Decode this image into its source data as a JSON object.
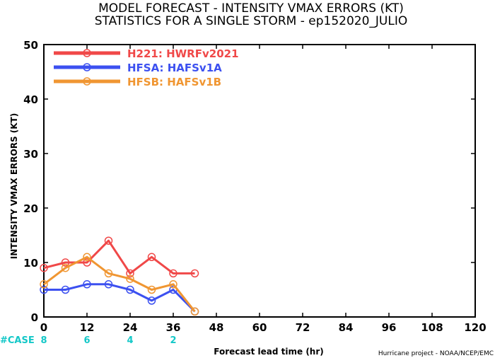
{
  "chart_data": {
    "type": "line",
    "title": "MODEL FORECAST - INTENSITY VMAX ERRORS (KT)",
    "subtitle": "STATISTICS FOR A SINGLE STORM - ep152020_JULIO",
    "xlabel": "Forecast lead time (hr)",
    "ylabel": "INTENSITY VMAX ERRORS (KT)",
    "xlim": [
      0,
      120
    ],
    "ylim": [
      0,
      50
    ],
    "xticks": [
      "0",
      "12",
      "24",
      "36",
      "48",
      "60",
      "72",
      "84",
      "96",
      "108",
      "120"
    ],
    "yticks": [
      "0",
      "10",
      "20",
      "30",
      "40",
      "50"
    ],
    "legend_position": "top-left",
    "x": [
      0,
      6,
      12,
      18,
      24,
      30,
      36,
      42
    ],
    "series": [
      {
        "name": "H221: HWRFv2021",
        "color": "#f04848",
        "values": [
          9,
          10,
          10,
          14,
          8,
          11,
          8,
          8
        ]
      },
      {
        "name": "HFSA: HAFSv1A",
        "color": "#3c50f0",
        "values": [
          5,
          5,
          6,
          6,
          5,
          3,
          5,
          1
        ]
      },
      {
        "name": "HFSB: HAFSv1B",
        "color": "#f09632",
        "values": [
          6,
          9,
          11,
          8,
          7,
          5,
          6,
          1
        ]
      }
    ],
    "cases": {
      "label": "#CASE",
      "color": "#14c8c8",
      "x": [
        0,
        12,
        24,
        36
      ],
      "values": [
        "8",
        "6",
        "4",
        "2"
      ]
    },
    "credit": "Hurricane project - NOAA/NCEP/EMC"
  }
}
